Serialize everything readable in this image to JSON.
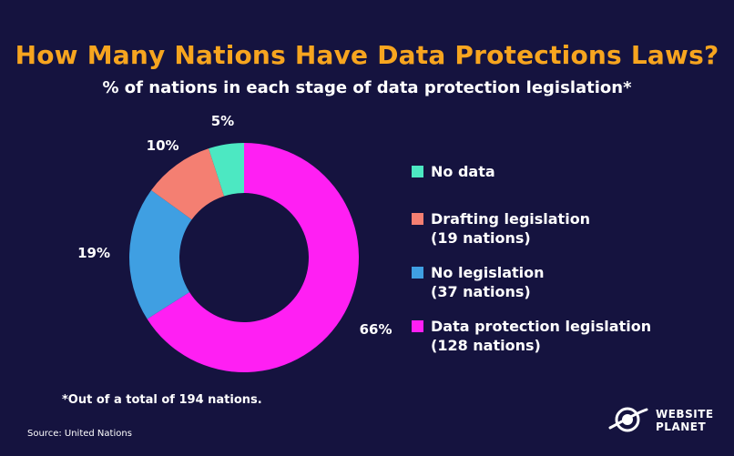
{
  "title": "How Many Nations Have Data Protections Laws?",
  "subtitle": "% of nations in each stage of data protection legislation*",
  "footnote": "*Out of a total of 194 nations.",
  "source": "Source: United Nations",
  "brand": {
    "line1": "WEBSITE",
    "line2": "PLANET",
    "logo_icon": "planet-logo-icon"
  },
  "chart_data": {
    "type": "pie",
    "donut": true,
    "legend_position": "right",
    "slices": [
      {
        "label": "Data protection legislation",
        "detail": "(128 nations)",
        "value": 66,
        "display": "66%",
        "color": "#ff1ff3"
      },
      {
        "label": "No legislation",
        "detail": "(37 nations)",
        "value": 19,
        "display": "19%",
        "color": "#3f9fe2"
      },
      {
        "label": "Drafting legislation",
        "detail": "(19 nations)",
        "value": 10,
        "display": "10%",
        "color": "#f47f72"
      },
      {
        "label": "No data",
        "detail": "",
        "value": 5,
        "display": "5%",
        "color": "#4ce8c2"
      }
    ],
    "legend_order": [
      "No data",
      "Drafting legislation",
      "No legislation",
      "Data protection legislation"
    ]
  }
}
